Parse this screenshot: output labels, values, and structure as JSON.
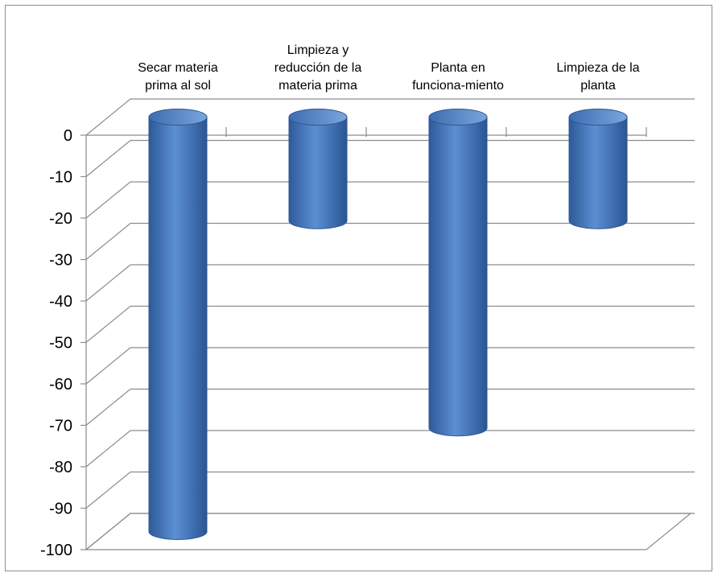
{
  "chart_data": {
    "type": "bar",
    "style": "3d-cylinder",
    "orientation": "vertical",
    "categories": [
      [
        "Secar materia",
        "prima al sol"
      ],
      [
        "Limpieza y",
        "reducción de la",
        "materia prima"
      ],
      [
        "Planta en",
        "funciona-miento"
      ],
      [
        "Limpieza de la",
        "planta"
      ]
    ],
    "category_axis_position": "top",
    "series": [
      {
        "values": [
          -100,
          -25,
          -75,
          -25
        ],
        "color": "#4a7cc0"
      }
    ],
    "y_ticks": [
      "0",
      "-10",
      "-20",
      "-30",
      "-40",
      "-50",
      "-60",
      "-70",
      "-80",
      "-90",
      "-100"
    ],
    "ylim": [
      -100,
      0
    ],
    "ytick_step": 10,
    "grid": true,
    "legend": "none",
    "title": "",
    "xlabel": "",
    "ylabel": ""
  }
}
